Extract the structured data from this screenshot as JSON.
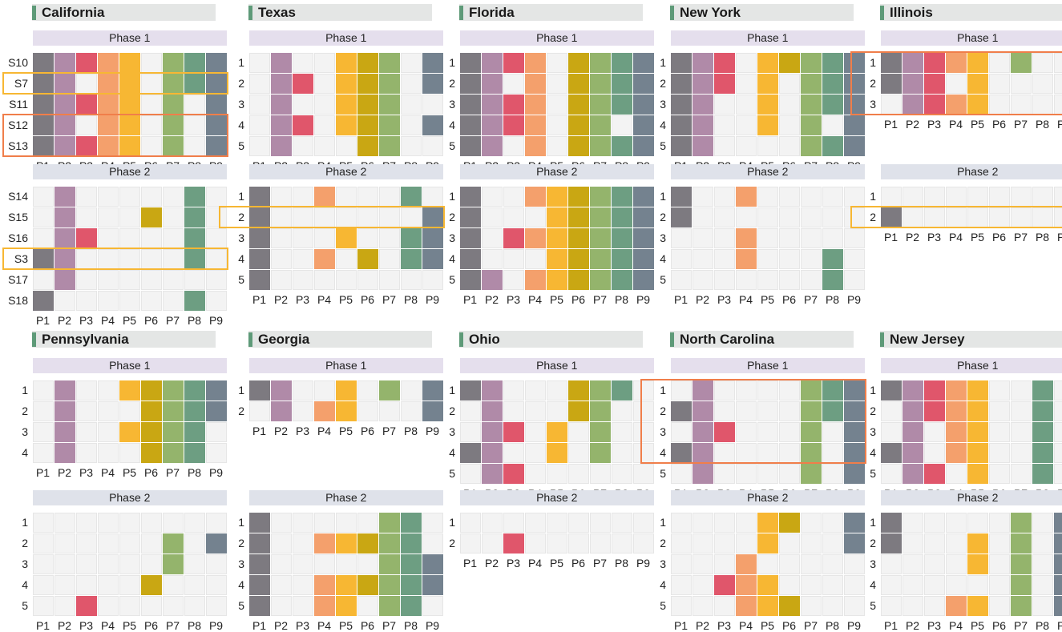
{
  "palette": {
    "P1": "#7d7a80",
    "P2": "#b08aa8",
    "P3": "#e0566b",
    "P4": "#f4a06c",
    "P5": "#f7b733",
    "P6": "#c9a713",
    "P7": "#94b46c",
    "P8": "#6d9e82",
    "P9": "#74828f",
    "empty": "#f3f3f3",
    "highlight_yellow": "#f7b733",
    "highlight_orange": "#f07e4a"
  },
  "chart_data": {
    "type": "heatmap",
    "columns": [
      "P1",
      "P2",
      "P3",
      "P4",
      "P5",
      "P6",
      "P7",
      "P8",
      "P9"
    ],
    "phase_labels": [
      "Phase 1",
      "Phase 2"
    ],
    "states": [
      {
        "name": "California",
        "phase1": {
          "rows": [
            "S10",
            "S7",
            "S11",
            "S12",
            "S13"
          ],
          "cells": [
            "1,2,3,4,5,7,8,9",
            "1,2,4,5,7,8,9",
            "1,2,3,4,5,7,9",
            "1,2,4,5,7,9",
            "1,2,3,4,5,7,9"
          ],
          "highlights": [
            {
              "rows": [
                1,
                1
              ],
              "color": "yellow"
            },
            {
              "rows": [
                3,
                4
              ],
              "color": "orange"
            }
          ]
        },
        "phase2": {
          "rows": [
            "S14",
            "S15",
            "S16",
            "S3",
            "S17",
            "S18"
          ],
          "cells": [
            "2,8",
            "2,6,8",
            "2,3,8",
            "1,2,8",
            "2",
            "1,8"
          ],
          "highlights": [
            {
              "rows": [
                3,
                3
              ],
              "color": "yellow"
            }
          ]
        }
      },
      {
        "name": "Texas",
        "phase1": {
          "rows": [
            "1",
            "2",
            "3",
            "4",
            "5"
          ],
          "cells": [
            "2,5,6,7,9",
            "2,3,5,6,7,9",
            "2,5,6,7",
            "2,3,5,6,7,9",
            "2,6,7"
          ],
          "highlights": []
        },
        "phase2": {
          "rows": [
            "1",
            "2",
            "3",
            "4",
            "5"
          ],
          "cells": [
            "1,4,8",
            "1,9",
            "1,5,8,9",
            "1,4,6,8,9",
            "1"
          ],
          "highlights": [
            {
              "rows": [
                1,
                1
              ],
              "color": "yellow"
            }
          ]
        }
      },
      {
        "name": "Florida",
        "phase1": {
          "rows": [
            "1",
            "2",
            "3",
            "4",
            "5"
          ],
          "cells": [
            "1,2,3,4,6,7,8,9",
            "1,2,4,6,7,8,9",
            "1,2,3,4,6,7,8,9",
            "1,2,3,4,6,7,9",
            "1,2,4,6,7,8,9"
          ],
          "highlights": []
        },
        "phase2": {
          "rows": [
            "1",
            "2",
            "3",
            "4",
            "5"
          ],
          "cells": [
            "1,4,5,6,7,8,9",
            "1,5,6,7,8,9",
            "1,3,4,5,6,7,8,9",
            "1,5,6,7,8,9",
            "1,2,4,5,6,7,8,9"
          ],
          "highlights": []
        }
      },
      {
        "name": "New York",
        "phase1": {
          "rows": [
            "1",
            "2",
            "3",
            "4",
            "5"
          ],
          "cells": [
            "1,2,3,5,6,7,8,9",
            "1,2,3,5,7,8,9",
            "1,2,5,7,8,9",
            "1,2,5,7,9",
            "1,2,7,8,9"
          ],
          "highlights": []
        },
        "phase2": {
          "rows": [
            "1",
            "2",
            "3",
            "4",
            "5"
          ],
          "cells": [
            "1,4",
            "1",
            "4",
            "4,8",
            "8"
          ],
          "highlights": []
        }
      },
      {
        "name": "Illinois",
        "phase1": {
          "rows": [
            "1",
            "2",
            "3"
          ],
          "cells": [
            "1,2,3,4,5,7",
            "1,2,3,5",
            "2,3,4,5"
          ],
          "highlights": [
            {
              "rows": [
                0,
                2
              ],
              "color": "orange"
            }
          ]
        },
        "phase2": {
          "rows": [
            "1",
            "2"
          ],
          "cells": [
            "",
            "1"
          ],
          "highlights": [
            {
              "rows": [
                1,
                1
              ],
              "color": "yellow"
            }
          ]
        }
      },
      {
        "name": "Pennsylvania",
        "phase1": {
          "rows": [
            "1",
            "2",
            "3",
            "4"
          ],
          "cells": [
            "2,5,6,7,8,9",
            "2,6,7,8,9",
            "2,5,6,7,8",
            "2,6,7,8"
          ],
          "highlights": []
        },
        "phase2": {
          "rows": [
            "1",
            "2",
            "3",
            "4",
            "5"
          ],
          "cells": [
            "",
            "7,9",
            "7",
            "6",
            "3"
          ],
          "highlights": []
        }
      },
      {
        "name": "Georgia",
        "phase1": {
          "rows": [
            "1",
            "2"
          ],
          "cells": [
            "1,2,5,7,9",
            "2,4,5,9"
          ],
          "highlights": []
        },
        "phase2": {
          "rows": [
            "1",
            "2",
            "3",
            "4",
            "5"
          ],
          "cells": [
            "1,7,8",
            "1,4,5,6,7,8",
            "1,7,8,9",
            "1,4,5,6,7,8,9",
            "1,4,5,7,8"
          ],
          "highlights": []
        }
      },
      {
        "name": "Ohio",
        "phase1": {
          "rows": [
            "1",
            "2",
            "3",
            "4",
            "5"
          ],
          "cells": [
            "1,2,6,7,8",
            "2,6,7",
            "2,3,5,7",
            "1,2,5,7",
            "2,3"
          ],
          "highlights": []
        },
        "phase2": {
          "rows": [
            "1",
            "2"
          ],
          "cells": [
            "",
            "3"
          ],
          "highlights": []
        }
      },
      {
        "name": "North Carolina",
        "phase1": {
          "rows": [
            "1",
            "2",
            "3",
            "4",
            "5"
          ],
          "cells": [
            "2,7,8,9",
            "1,2,7,8,9",
            "2,3,7,9",
            "1,2,7,9",
            "2,7,9"
          ],
          "highlights": [
            {
              "rows": [
                0,
                3
              ],
              "color": "orange"
            }
          ]
        },
        "phase2": {
          "rows": [
            "1",
            "2",
            "3",
            "4",
            "5"
          ],
          "cells": [
            "5,6,9",
            "5,9",
            "4",
            "3,4,5",
            "4,5,6"
          ],
          "highlights": []
        }
      },
      {
        "name": "New Jersey",
        "phase1": {
          "rows": [
            "1",
            "2",
            "3",
            "4",
            "5"
          ],
          "cells": [
            "1,2,3,4,5,8",
            "2,3,4,5,8",
            "2,4,5,8",
            "1,2,4,5,8",
            "2,3,5,8"
          ],
          "highlights": []
        },
        "phase2": {
          "rows": [
            "1",
            "2",
            "3",
            "4",
            "5"
          ],
          "cells": [
            "1,7,9",
            "1,5,7,9",
            "5,7,9",
            "7,9",
            "4,5,7,9"
          ],
          "highlights": []
        }
      }
    ]
  }
}
